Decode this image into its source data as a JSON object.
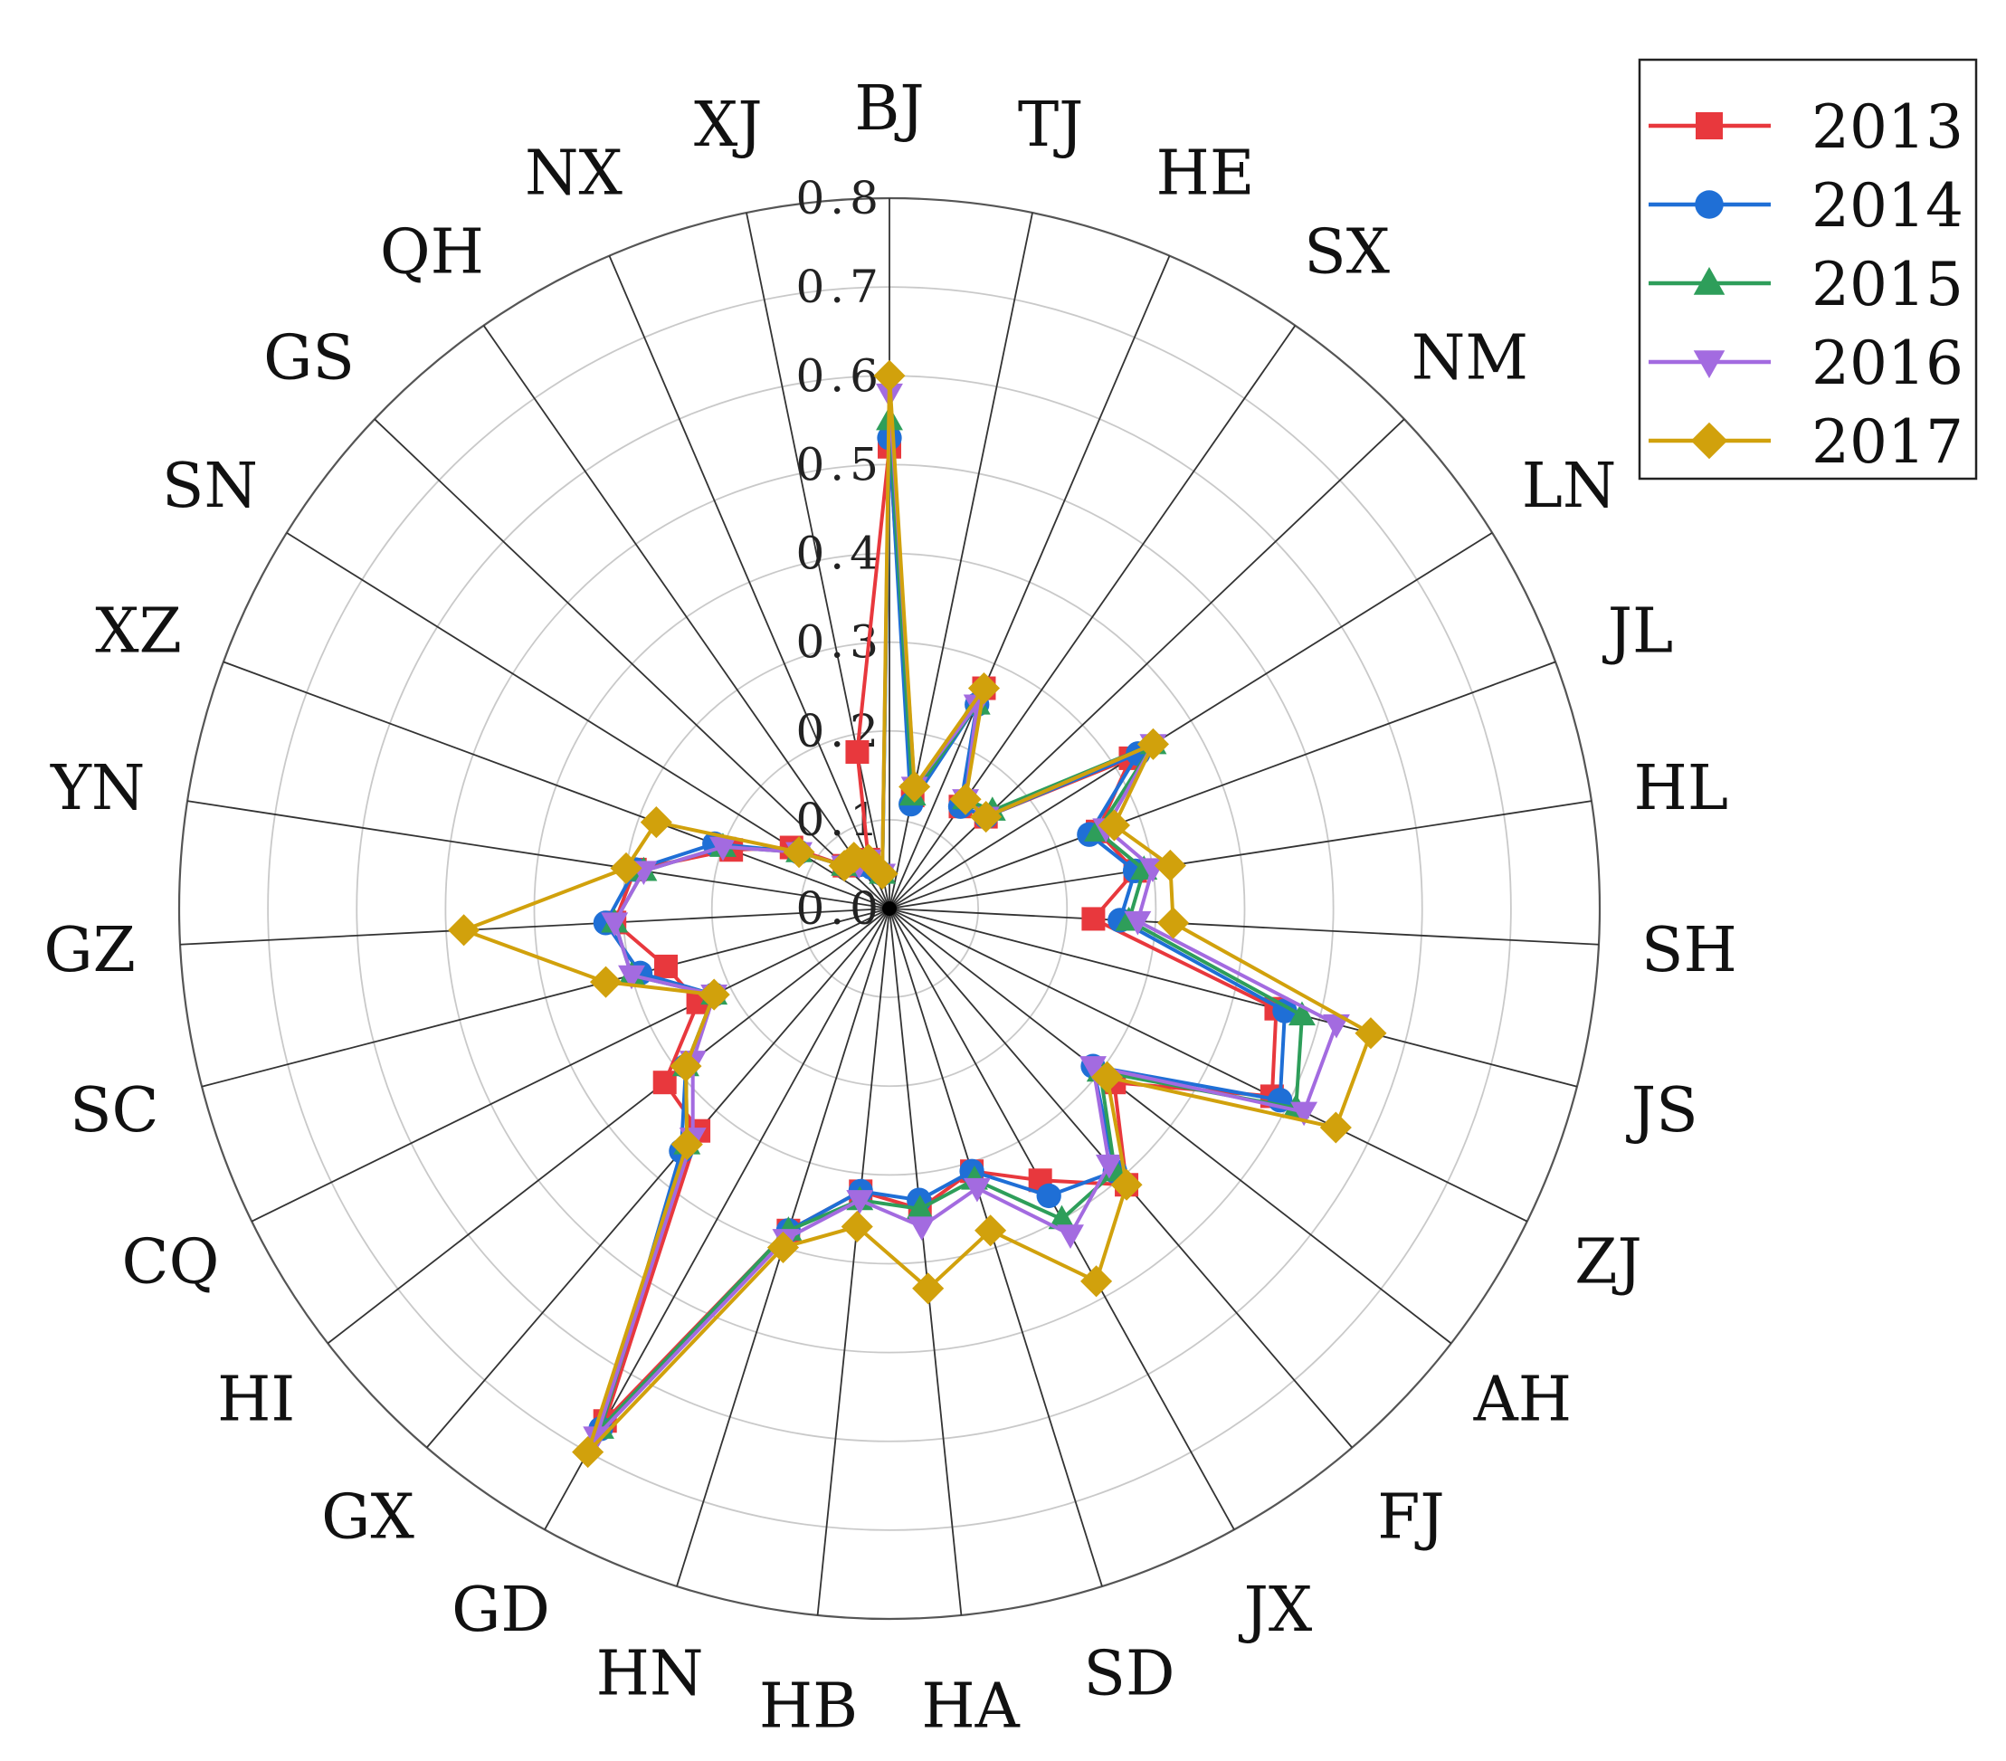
{
  "chart_data": {
    "type": "radar",
    "title": "",
    "rlim": [
      0,
      0.8
    ],
    "ticks": [
      "0.0",
      "0.1",
      "0.2",
      "0.3",
      "0.4",
      "0.5",
      "0.6",
      "0.7",
      "0.8"
    ],
    "grid": true,
    "legend_position": "top-right",
    "categories": [
      "BJ",
      "TJ",
      "HE",
      "SX",
      "NM",
      "LN",
      "JL",
      "HL",
      "SH",
      "JS",
      "ZJ",
      "AH",
      "FJ",
      "JX",
      "SD",
      "HA",
      "HB",
      "HN",
      "GD",
      "GX",
      "HI",
      "CQ",
      "SC",
      "GZ",
      "YN",
      "XZ",
      "SN",
      "GS",
      "QH",
      "NX",
      "XJ"
    ],
    "series": [
      {
        "name": "2013",
        "color": "#e8383d",
        "marker": "square",
        "values": [
          0.52,
          0.13,
          0.27,
          0.14,
          0.15,
          0.32,
          0.25,
          0.28,
          0.23,
          0.45,
          0.48,
          0.32,
          0.41,
          0.35,
          0.31,
          0.34,
          0.32,
          0.38,
          0.66,
          0.33,
          0.32,
          0.24,
          0.26,
          0.31,
          0.29,
          0.19,
          0.13,
          0.07,
          0.06,
          0.06,
          0.18
        ]
      },
      {
        "name": "2014",
        "color": "#1f6fd6",
        "marker": "circle",
        "values": [
          0.53,
          0.12,
          0.25,
          0.14,
          0.15,
          0.33,
          0.24,
          0.28,
          0.26,
          0.46,
          0.49,
          0.29,
          0.39,
          0.37,
          0.31,
          0.33,
          0.32,
          0.38,
          0.67,
          0.36,
          0.29,
          0.22,
          0.29,
          0.32,
          0.29,
          0.21,
          0.12,
          0.07,
          0.06,
          0.05,
          0.04
        ]
      },
      {
        "name": "2015",
        "color": "#2e9e5a",
        "marker": "triangle-up",
        "values": [
          0.55,
          0.13,
          0.25,
          0.15,
          0.16,
          0.35,
          0.25,
          0.29,
          0.27,
          0.48,
          0.51,
          0.3,
          0.39,
          0.4,
          0.32,
          0.34,
          0.33,
          0.38,
          0.67,
          0.35,
          0.29,
          0.22,
          0.3,
          0.31,
          0.28,
          0.2,
          0.12,
          0.07,
          0.07,
          0.06,
          0.04
        ]
      },
      {
        "name": "2016",
        "color": "#a36be0",
        "marker": "triangle-down",
        "values": [
          0.58,
          0.14,
          0.25,
          0.15,
          0.15,
          0.35,
          0.26,
          0.3,
          0.28,
          0.52,
          0.52,
          0.29,
          0.38,
          0.42,
          0.33,
          0.36,
          0.33,
          0.39,
          0.68,
          0.34,
          0.28,
          0.22,
          0.3,
          0.31,
          0.28,
          0.2,
          0.12,
          0.07,
          0.06,
          0.06,
          0.04
        ]
      },
      {
        "name": "2017",
        "color": "#d1a10c",
        "marker": "diamond",
        "values": [
          0.6,
          0.14,
          0.27,
          0.15,
          0.15,
          0.35,
          0.27,
          0.32,
          0.32,
          0.56,
          0.56,
          0.31,
          0.41,
          0.48,
          0.38,
          0.43,
          0.36,
          0.4,
          0.7,
          0.35,
          0.29,
          0.22,
          0.33,
          0.48,
          0.3,
          0.28,
          0.12,
          0.07,
          0.07,
          0.06,
          0.04
        ]
      }
    ]
  }
}
